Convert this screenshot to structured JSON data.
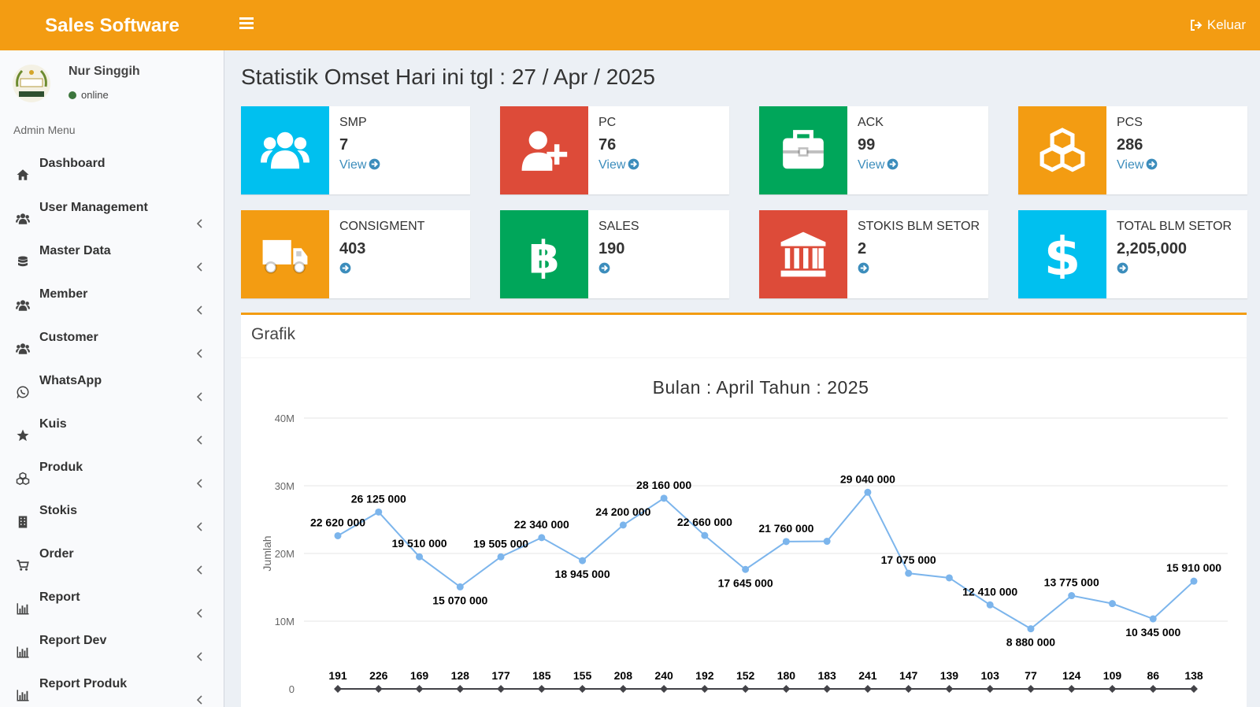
{
  "app": {
    "title": "Sales Software",
    "logout_label": "Keluar"
  },
  "user": {
    "name": "Nur Singgih",
    "status": "online"
  },
  "sidebar": {
    "header": "Admin Menu",
    "items": [
      {
        "label": "Dashboard",
        "icon": "home-icon",
        "has_children": false
      },
      {
        "label": "User Management",
        "icon": "users-icon",
        "has_children": true
      },
      {
        "label": "Master Data",
        "icon": "database-icon",
        "has_children": true
      },
      {
        "label": "Member",
        "icon": "users-icon",
        "has_children": true
      },
      {
        "label": "Customer",
        "icon": "users-icon",
        "has_children": true
      },
      {
        "label": "WhatsApp",
        "icon": "whatsapp-icon",
        "has_children": true
      },
      {
        "label": "Kuis",
        "icon": "star-icon",
        "has_children": true
      },
      {
        "label": "Produk",
        "icon": "cubes-icon",
        "has_children": true
      },
      {
        "label": "Stokis",
        "icon": "building-icon",
        "has_children": true
      },
      {
        "label": "Order",
        "icon": "cart-icon",
        "has_children": true
      },
      {
        "label": "Report",
        "icon": "bar-chart-icon",
        "has_children": true
      },
      {
        "label": "Report Dev",
        "icon": "bar-chart-icon",
        "has_children": true
      },
      {
        "label": "Report Produk",
        "icon": "bar-chart-icon",
        "has_children": true
      }
    ]
  },
  "page": {
    "title": "Statistik Omset Hari ini tgl : 27 / Apr / 2025"
  },
  "info_boxes": [
    {
      "label": "SMP",
      "value": "7",
      "link": "View",
      "color": "#00c0ef",
      "icon": "users-icon"
    },
    {
      "label": "PC",
      "value": "76",
      "link": "View",
      "color": "#dd4b39",
      "icon": "user-plus-icon"
    },
    {
      "label": "ACK",
      "value": "99",
      "link": "View",
      "color": "#00a65a",
      "icon": "briefcase-icon"
    },
    {
      "label": "PCS",
      "value": "286",
      "link": "View",
      "color": "#f39c12",
      "icon": "cubes-icon"
    },
    {
      "label": "CONSIGMENT",
      "value": "403",
      "link": "",
      "color": "#f39c12",
      "icon": "truck-icon"
    },
    {
      "label": "SALES",
      "value": "190",
      "link": "",
      "color": "#00a65a",
      "icon": "bitcoin-icon"
    },
    {
      "label": "STOKIS BLM SETOR",
      "value": "2",
      "link": "",
      "color": "#dd4b39",
      "icon": "bank-icon"
    },
    {
      "label": "TOTAL BLM SETOR",
      "value": "2,205,000",
      "link": "",
      "color": "#00c0ef",
      "icon": "dollar-icon"
    }
  ],
  "chart_box": {
    "title": "Grafik"
  },
  "chart_data": {
    "type": "line",
    "title": "Bulan : April Tahun : 2025",
    "ylabel": "Jumlah",
    "xlabel": "",
    "ylim": [
      0,
      40000000
    ],
    "yticks": [
      "0",
      "10M",
      "20M",
      "30M",
      "40M"
    ],
    "grid": true,
    "series": [
      {
        "name": "",
        "color": "#7cb5ec",
        "values": [
          22620000,
          26125000,
          19510000,
          15070000,
          19505000,
          22340000,
          18945000,
          24200000,
          28160000,
          22660000,
          17645000,
          21760000,
          21800000,
          29040000,
          17075000,
          16400000,
          12410000,
          8880000,
          13775000,
          12600000,
          10345000,
          15910000
        ],
        "labels": [
          "22 620 000",
          "26 125 000",
          "19 510 000",
          "15 070 000",
          "19 505 000",
          "22 340 000",
          "18 945 000",
          "24 200 000",
          "28 160 000",
          "22 660 000",
          "17 645 000",
          "21 760 000",
          "",
          "29 040 000",
          "17 075 000",
          "",
          "12 410 000",
          "8 880 000",
          "13 775 000",
          "",
          "10 345 000",
          "15 910 000"
        ]
      },
      {
        "name": "",
        "color": "#434348",
        "values": [
          191,
          226,
          169,
          128,
          177,
          185,
          155,
          208,
          240,
          192,
          152,
          180,
          183,
          241,
          147,
          139,
          103,
          77,
          124,
          109,
          86,
          138
        ],
        "labels": [
          "191",
          "226",
          "169",
          "128",
          "177",
          "185",
          "155",
          "208",
          "240",
          "192",
          "152",
          "180",
          "183",
          "241",
          "147",
          "139",
          "103",
          "77",
          "124",
          "109",
          "86",
          "138"
        ]
      }
    ]
  }
}
